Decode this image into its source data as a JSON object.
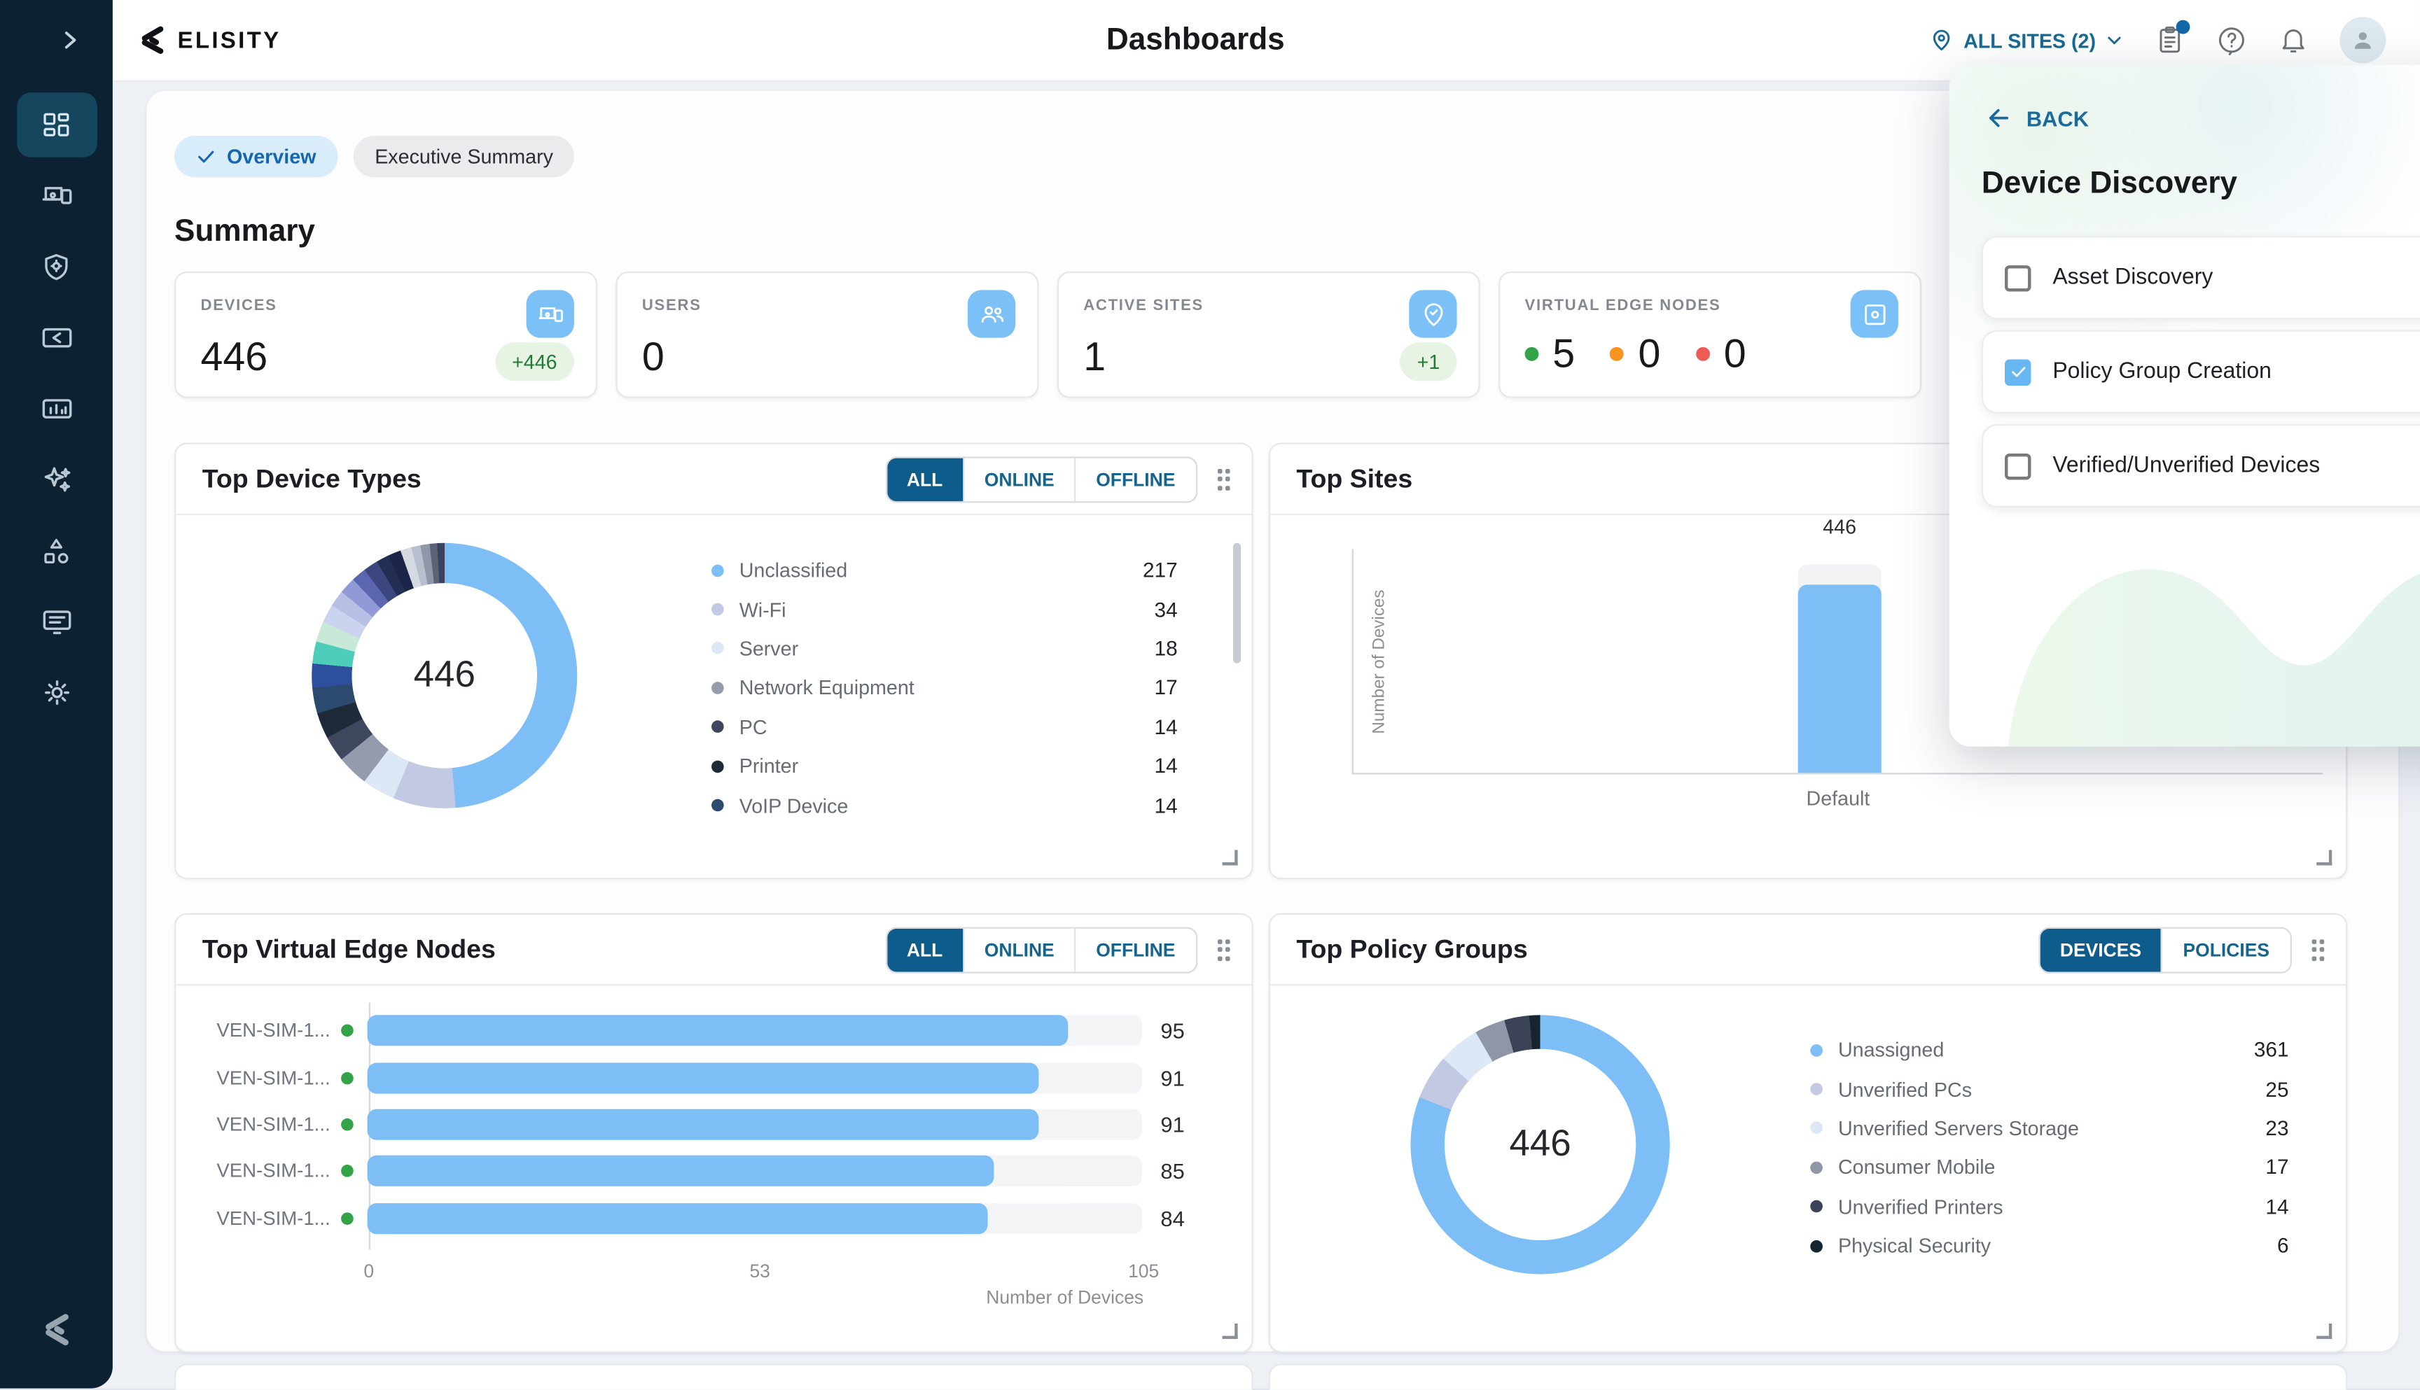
{
  "header": {
    "logo_text": "ELISITY",
    "title": "Dashboards",
    "site_selector": "ALL SITES (2)",
    "icons": [
      "location-pin",
      "tasks-clipboard",
      "help",
      "notifications",
      "account"
    ],
    "accent_color": "#186a94"
  },
  "sidebar": {
    "icons": [
      "expand-chevron",
      "dashboards",
      "devices",
      "policy-shield",
      "elisity-console",
      "analytics",
      "ai-sparkles",
      "topology-shapes",
      "logs-console",
      "settings",
      "elisity-mark"
    ]
  },
  "tabs": [
    {
      "label": "Overview",
      "selected": true
    },
    {
      "label": "Executive Summary",
      "selected": false
    }
  ],
  "section_title": "Summary",
  "summary_cards": {
    "devices": {
      "label": "DEVICES",
      "value": "446",
      "badge": "+446",
      "icon": "devices"
    },
    "users": {
      "label": "USERS",
      "value": "0",
      "icon": "users"
    },
    "active_sites": {
      "label": "ACTIVE SITES",
      "value": "1",
      "badge": "+1",
      "icon": "site-pin-check"
    },
    "ven": {
      "label": "VIRTUAL EDGE NODES",
      "icon": "ven",
      "statuses": [
        {
          "state": "online",
          "color": "#33a347",
          "value": "5"
        },
        {
          "state": "warning",
          "color": "#f7941e",
          "value": "0"
        },
        {
          "state": "offline",
          "color": "#ee5b57",
          "value": "0"
        }
      ]
    }
  },
  "overlay": {
    "back_label": "BACK",
    "title": "Device Discovery",
    "options": [
      {
        "label": "Asset Discovery",
        "checked": false
      },
      {
        "label": "Policy Group Creation",
        "checked": true
      },
      {
        "label": "Verified/Unverified Devices",
        "checked": false
      }
    ]
  },
  "chart_data": [
    {
      "type": "donut",
      "title": "Top Device Types",
      "filters": [
        "ALL",
        "ONLINE",
        "OFFLINE"
      ],
      "selected_filter": "ALL",
      "total": 446,
      "center_label": "446",
      "legend": [
        {
          "label": "Unclassified",
          "value": 217,
          "color": "#7cbef5"
        },
        {
          "label": "Wi-Fi",
          "value": 34,
          "color": "#c3c9e2"
        },
        {
          "label": "Server",
          "value": 18,
          "color": "#dde8f7"
        },
        {
          "label": "Network Equipment",
          "value": 17,
          "color": "#959bac"
        },
        {
          "label": "PC",
          "value": 14,
          "color": "#3f475f"
        },
        {
          "label": "Printer",
          "value": 14,
          "color": "#1d2b38"
        },
        {
          "label": "VoIP Device",
          "value": 14,
          "color": "#2c4a6e"
        }
      ],
      "other_segments": [
        {
          "value": 13,
          "color": "#2e4f9e"
        },
        {
          "value": 12,
          "color": "#4fcdbb"
        },
        {
          "value": 11,
          "color": "#c8e9d8"
        },
        {
          "value": 10,
          "color": "#ccd3ee"
        },
        {
          "value": 9,
          "color": "#b7bfe5"
        },
        {
          "value": 9,
          "color": "#8f9ad6"
        },
        {
          "value": 8,
          "color": "#5a66b0"
        },
        {
          "value": 8,
          "color": "#3c477f"
        },
        {
          "value": 7,
          "color": "#232e55"
        },
        {
          "value": 7,
          "color": "#1a2547"
        },
        {
          "value": 6,
          "color": "#d5d9e2"
        },
        {
          "value": 5,
          "color": "#b9bfce"
        },
        {
          "value": 5,
          "color": "#8f97a8"
        },
        {
          "value": 4,
          "color": "#5a6378"
        },
        {
          "value": 4,
          "color": "#39445c"
        }
      ]
    },
    {
      "type": "bar",
      "title": "Top Sites",
      "categories": [
        "Default"
      ],
      "values": [
        446
      ],
      "value_labels": [
        "446"
      ],
      "ylabel": "Number of Devices",
      "bar_color": "#7cbef5"
    },
    {
      "type": "hbar",
      "title": "Top Virtual Edge Nodes",
      "filters": [
        "ALL",
        "ONLINE",
        "OFFLINE"
      ],
      "selected_filter": "ALL",
      "categories": [
        "VEN-SIM-1...",
        "VEN-SIM-1...",
        "VEN-SIM-1...",
        "VEN-SIM-1...",
        "VEN-SIM-1..."
      ],
      "values": [
        95,
        91,
        91,
        85,
        84
      ],
      "xlim": [
        0,
        105
      ],
      "xticks": [
        "0",
        "53",
        "105"
      ],
      "xlabel": "Number of Devices",
      "bar_color": "#7cbef5",
      "status_dot_color": "#33a347"
    },
    {
      "type": "donut",
      "title": "Top Policy Groups",
      "filters": [
        "DEVICES",
        "POLICIES"
      ],
      "selected_filter": "DEVICES",
      "total": 446,
      "center_label": "446",
      "legend": [
        {
          "label": "Unassigned",
          "value": 361,
          "color": "#7cbef5"
        },
        {
          "label": "Unverified PCs",
          "value": 25,
          "color": "#c3c9e2"
        },
        {
          "label": "Unverified Servers Storage",
          "value": 23,
          "color": "#dde8f7"
        },
        {
          "label": "Consumer Mobile",
          "value": 17,
          "color": "#8f96a6"
        },
        {
          "label": "Unverified Printers",
          "value": 14,
          "color": "#3c4258"
        },
        {
          "label": "Physical Security",
          "value": 6,
          "color": "#152530"
        }
      ]
    }
  ]
}
